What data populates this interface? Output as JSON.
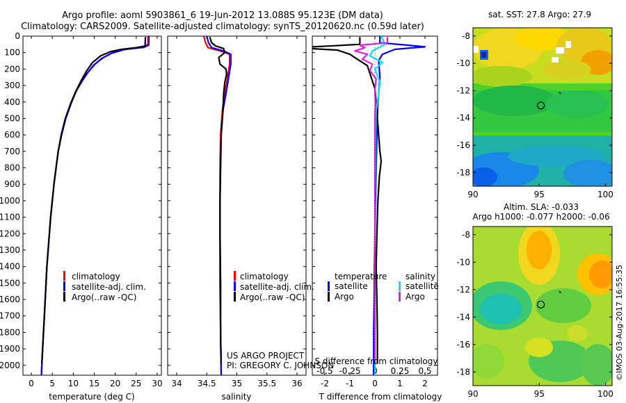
{
  "header": {
    "line1": "Argo profile: aoml 5903861_6 19-Jun-2012 13.088S 95.123E (DM data)",
    "line2": "Climatology: CARS2009. Satellite-adjusted climatology: synTS_20120620.nc (0.59d later)"
  },
  "colors": {
    "climatology": "#ff0000",
    "satellite": "#0000ff",
    "argo": "#000000",
    "salinity_satellite": "#00e5ee",
    "salinity_argo": "#e020e0"
  },
  "side_stamp": "©IMOS 03-Aug-2017 16:55:35",
  "credits": {
    "line1": "US ARGO PROJECT",
    "line2": "PI: GREGORY C. JOHNSON"
  },
  "chart_data": [
    {
      "type": "line",
      "panel": "temperature",
      "xlabel": "temperature (deg C)",
      "xlim": [
        -2,
        31
      ],
      "ylim": [
        2060,
        0
      ],
      "x_ticks": [
        0,
        5,
        10,
        15,
        20,
        25,
        30
      ],
      "y_ticks": [
        0,
        100,
        200,
        300,
        400,
        500,
        600,
        700,
        800,
        900,
        1000,
        1100,
        1200,
        1300,
        1400,
        1500,
        1600,
        1700,
        1800,
        1900,
        2000
      ],
      "legend": [
        "climatology",
        "satellite-adj. clim.",
        "Argo(..raw -QC)"
      ],
      "legend_position": "bottom-center",
      "series": [
        {
          "name": "climatology",
          "color": "#ff0000",
          "points": [
            [
              27.8,
              0
            ],
            [
              27.8,
              50
            ],
            [
              26.5,
              65
            ],
            [
              22.5,
              80
            ],
            [
              19.5,
              100
            ],
            [
              17.2,
              130
            ],
            [
              15.2,
              170
            ],
            [
              13.5,
              220
            ],
            [
              12.2,
              270
            ],
            [
              10.8,
              330
            ],
            [
              9.6,
              400
            ],
            [
              8.2,
              500
            ],
            [
              7.2,
              600
            ],
            [
              6.4,
              700
            ],
            [
              5.9,
              800
            ],
            [
              5.4,
              900
            ],
            [
              5.0,
              1000
            ],
            [
              4.6,
              1100
            ],
            [
              4.3,
              1200
            ],
            [
              4.0,
              1300
            ],
            [
              3.7,
              1400
            ],
            [
              3.5,
              1500
            ],
            [
              3.3,
              1600
            ],
            [
              3.1,
              1700
            ],
            [
              2.9,
              1800
            ],
            [
              2.7,
              1900
            ],
            [
              2.5,
              2000
            ],
            [
              2.4,
              2060
            ]
          ]
        },
        {
          "name": "satellite-adj. clim.",
          "color": "#0000ff",
          "points": [
            [
              28.0,
              0
            ],
            [
              28.0,
              55
            ],
            [
              26.8,
              68
            ],
            [
              22.0,
              82
            ],
            [
              19.0,
              105
            ],
            [
              16.8,
              135
            ],
            [
              14.9,
              175
            ],
            [
              13.3,
              225
            ],
            [
              12.0,
              275
            ],
            [
              10.6,
              335
            ],
            [
              9.5,
              400
            ],
            [
              8.1,
              500
            ],
            [
              7.1,
              600
            ],
            [
              6.4,
              700
            ],
            [
              5.9,
              800
            ],
            [
              5.4,
              900
            ],
            [
              5.0,
              1000
            ],
            [
              4.6,
              1100
            ],
            [
              4.3,
              1200
            ],
            [
              4.0,
              1300
            ],
            [
              3.7,
              1400
            ],
            [
              3.5,
              1500
            ],
            [
              3.3,
              1600
            ],
            [
              3.1,
              1700
            ],
            [
              2.9,
              1800
            ],
            [
              2.7,
              1900
            ],
            [
              2.5,
              2000
            ],
            [
              2.4,
              2060
            ]
          ]
        },
        {
          "name": "Argo(..raw -QC)",
          "color": "#000000",
          "points": [
            [
              27.2,
              5
            ],
            [
              27.1,
              60
            ],
            [
              25.0,
              70
            ],
            [
              21.5,
              80
            ],
            [
              18.8,
              95
            ],
            [
              16.5,
              120
            ],
            [
              14.6,
              160
            ],
            [
              13.2,
              210
            ],
            [
              12.0,
              265
            ],
            [
              10.7,
              330
            ],
            [
              9.6,
              400
            ],
            [
              8.2,
              500
            ],
            [
              7.2,
              600
            ],
            [
              6.4,
              700
            ],
            [
              5.9,
              800
            ],
            [
              5.4,
              900
            ],
            [
              5.0,
              1000
            ],
            [
              4.6,
              1100
            ],
            [
              4.3,
              1200
            ],
            [
              4.0,
              1300
            ],
            [
              3.7,
              1400
            ],
            [
              3.5,
              1500
            ],
            [
              3.3,
              1600
            ],
            [
              3.1,
              1700
            ],
            [
              2.9,
              1800
            ],
            [
              2.7,
              1900
            ],
            [
              2.5,
              1990
            ]
          ]
        }
      ]
    },
    {
      "type": "line",
      "panel": "salinity",
      "xlabel": "salinity",
      "xlim": [
        33.85,
        36.15
      ],
      "ylim": [
        2060,
        0
      ],
      "x_ticks": [
        34,
        34.5,
        35,
        35.5,
        36
      ],
      "legend": [
        "climatology",
        "satellite-adj. clim.",
        "Argo(..raw -QC)"
      ],
      "legend_position": "bottom-center",
      "series": [
        {
          "name": "climatology",
          "color": "#ff0000",
          "points": [
            [
              34.45,
              0
            ],
            [
              34.48,
              40
            ],
            [
              34.52,
              70
            ],
            [
              34.72,
              90
            ],
            [
              34.88,
              110
            ],
            [
              34.88,
              170
            ],
            [
              34.84,
              260
            ],
            [
              34.8,
              350
            ],
            [
              34.76,
              450
            ],
            [
              34.73,
              600
            ],
            [
              34.72,
              800
            ],
            [
              34.72,
              1000
            ],
            [
              34.72,
              1200
            ],
            [
              34.73,
              1500
            ],
            [
              34.73,
              1800
            ],
            [
              34.74,
              2060
            ]
          ]
        },
        {
          "name": "satellite-adj. clim.",
          "color": "#0000ff",
          "points": [
            [
              34.5,
              0
            ],
            [
              34.53,
              40
            ],
            [
              34.58,
              70
            ],
            [
              34.78,
              90
            ],
            [
              34.9,
              110
            ],
            [
              34.9,
              170
            ],
            [
              34.86,
              260
            ],
            [
              34.82,
              350
            ],
            [
              34.77,
              450
            ],
            [
              34.74,
              600
            ],
            [
              34.73,
              800
            ],
            [
              34.72,
              1000
            ],
            [
              34.72,
              1200
            ],
            [
              34.72,
              1500
            ],
            [
              34.73,
              1800
            ],
            [
              34.74,
              2060
            ]
          ]
        },
        {
          "name": "Argo(..raw -QC)",
          "color": "#000000",
          "points": [
            [
              34.55,
              5
            ],
            [
              34.58,
              40
            ],
            [
              34.65,
              60
            ],
            [
              34.78,
              75
            ],
            [
              34.8,
              100
            ],
            [
              34.7,
              130
            ],
            [
              34.72,
              170
            ],
            [
              34.82,
              200
            ],
            [
              34.83,
              230
            ],
            [
              34.8,
              280
            ],
            [
              34.78,
              350
            ],
            [
              34.77,
              450
            ],
            [
              34.74,
              600
            ],
            [
              34.73,
              800
            ],
            [
              34.72,
              1000
            ],
            [
              34.72,
              1200
            ],
            [
              34.73,
              1500
            ],
            [
              34.73,
              1800
            ],
            [
              34.74,
              1990
            ]
          ]
        }
      ]
    },
    {
      "type": "line",
      "panel": "difference",
      "xlabel": "T difference from climatology",
      "xlabel_top": "S difference from climatology",
      "xlim": [
        -2.5,
        2.5
      ],
      "ylim": [
        2060,
        0
      ],
      "x_ticks": [
        -2,
        -1,
        0,
        1,
        2
      ],
      "x_ticks_top": [
        -0.5,
        -0.25,
        0,
        0.25,
        0.5
      ],
      "legend_groups": [
        {
          "title": "temperature",
          "entries": [
            "satellite",
            "Argo"
          ]
        },
        {
          "title": "salinity",
          "entries": [
            "satellite",
            "Argo"
          ]
        }
      ],
      "series": [
        {
          "name": "temperature satellite",
          "color": "#0000ff",
          "points": [
            [
              0.2,
              0
            ],
            [
              0.2,
              40
            ],
            [
              1.3,
              55
            ],
            [
              2.0,
              65
            ],
            [
              0.8,
              80
            ],
            [
              0.3,
              110
            ],
            [
              0.15,
              150
            ],
            [
              0.2,
              250
            ],
            [
              0.12,
              400
            ],
            [
              0.08,
              600
            ],
            [
              0.05,
              800
            ],
            [
              0.02,
              1000
            ],
            [
              0.0,
              1200
            ],
            [
              -0.02,
              1400
            ],
            [
              -0.03,
              1600
            ],
            [
              -0.05,
              1800
            ],
            [
              -0.05,
              2060
            ]
          ]
        },
        {
          "name": "temperature Argo",
          "color": "#000000",
          "points": [
            [
              -0.6,
              5
            ],
            [
              -0.6,
              50
            ],
            [
              -1.8,
              60
            ],
            [
              -2.5,
              65
            ],
            [
              -2.6,
              75
            ],
            [
              -1.5,
              85
            ],
            [
              -1.0,
              110
            ],
            [
              -0.7,
              140
            ],
            [
              -0.3,
              180
            ],
            [
              -0.15,
              250
            ],
            [
              0.0,
              320
            ],
            [
              0.05,
              400
            ],
            [
              0.1,
              500
            ],
            [
              0.15,
              600
            ],
            [
              0.2,
              700
            ],
            [
              0.25,
              760
            ],
            [
              0.18,
              850
            ],
            [
              0.12,
              1000
            ],
            [
              0.08,
              1200
            ],
            [
              0.05,
              1400
            ],
            [
              0.08,
              1600
            ],
            [
              0.1,
              1800
            ],
            [
              0.1,
              1990
            ]
          ]
        },
        {
          "name": "salinity satellite",
          "color": "#00e5ee",
          "points": [
            [
              0.25,
              0
            ],
            [
              0.4,
              50
            ],
            [
              0.15,
              70
            ],
            [
              -0.1,
              90
            ],
            [
              -0.2,
              120
            ],
            [
              0.3,
              160
            ],
            [
              0.0,
              200
            ],
            [
              0.2,
              280
            ],
            [
              0.15,
              350
            ],
            [
              0.05,
              450
            ],
            [
              0.02,
              600
            ],
            [
              0.02,
              800
            ],
            [
              0.0,
              1000
            ],
            [
              0.0,
              1200
            ],
            [
              0.0,
              1400
            ],
            [
              0.0,
              1600
            ],
            [
              0.0,
              1800
            ],
            [
              0.0,
              2060
            ]
          ]
        },
        {
          "name": "salinity Argo",
          "color": "#e020e0",
          "points": [
            [
              0.5,
              5
            ],
            [
              0.5,
              40
            ],
            [
              -0.6,
              55
            ],
            [
              -0.4,
              70
            ],
            [
              -0.8,
              90
            ],
            [
              -0.3,
              110
            ],
            [
              -0.5,
              140
            ],
            [
              -0.1,
              170
            ],
            [
              -0.2,
              210
            ],
            [
              0.05,
              260
            ],
            [
              0.0,
              320
            ],
            [
              0.02,
              400
            ],
            [
              0.0,
              500
            ],
            [
              0.0,
              700
            ],
            [
              0.0,
              900
            ],
            [
              0.0,
              1100
            ],
            [
              0.0,
              1990
            ]
          ]
        }
      ]
    },
    {
      "type": "heatmap",
      "panel": "sst-map",
      "title": "sat. SST: 27.8 Argo: 27.9",
      "xlim": [
        90,
        100.5
      ],
      "ylim": [
        -19,
        -7.4
      ],
      "x_ticks": [
        90,
        95,
        100
      ],
      "y_ticks": [
        -8,
        -10,
        -12,
        -14,
        -16,
        -18
      ],
      "profile_marker": [
        95.123,
        -13.088
      ]
    },
    {
      "type": "heatmap",
      "panel": "sla-map",
      "title_line1": "Altim. SLA: -0.033",
      "title_line2": "Argo h1000: -0.077 h2000: -0.06",
      "xlim": [
        90,
        100.5
      ],
      "ylim": [
        -19,
        -7.4
      ],
      "x_ticks": [
        90,
        95,
        100
      ],
      "y_ticks": [
        -8,
        -10,
        -12,
        -14,
        -16,
        -18
      ],
      "profile_marker": [
        95.123,
        -13.088
      ]
    }
  ]
}
